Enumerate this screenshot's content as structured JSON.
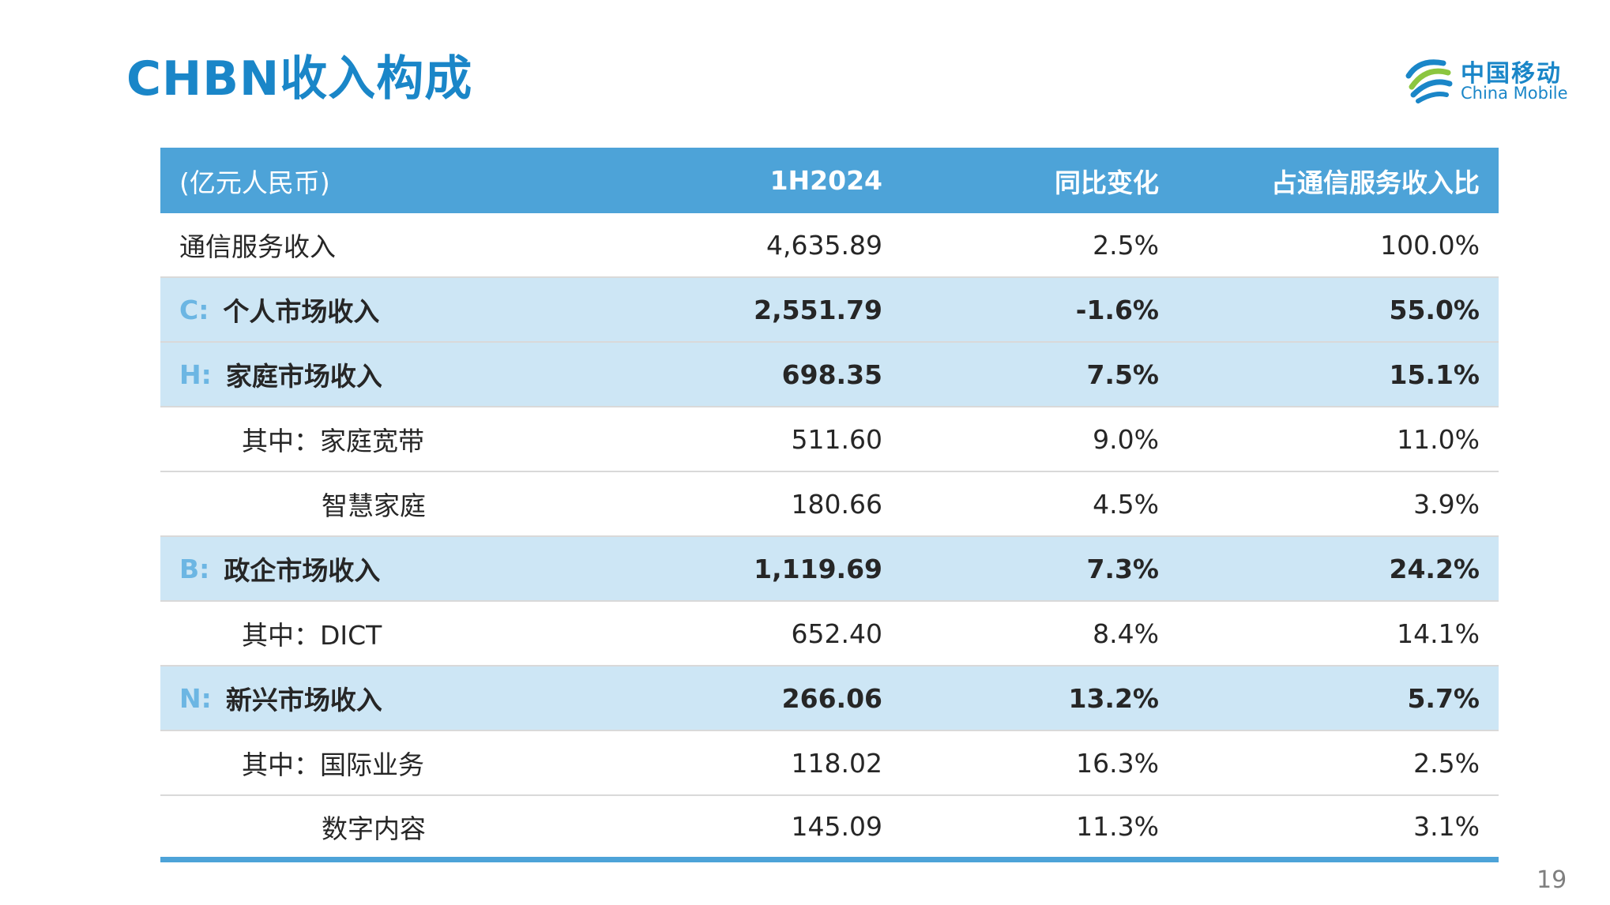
{
  "title": "CHBN收入构成",
  "logo": {
    "cn": "中国移动",
    "en": "China Mobile"
  },
  "table": {
    "headers": [
      "(亿元人民币)",
      "1H2024",
      "同比变化",
      "占通信服务收入比"
    ],
    "rows": [
      {
        "prefix": "",
        "label": "通信服务收入",
        "value": "4,635.89",
        "yoy": "2.5%",
        "share": "100.0%"
      },
      {
        "prefix": "C:",
        "label": "个人市场收入",
        "value": "2,551.79",
        "yoy": "-1.6%",
        "share": "55.0%"
      },
      {
        "prefix": "H:",
        "label": "家庭市场收入",
        "value": "698.35",
        "yoy": "7.5%",
        "share": "15.1%"
      },
      {
        "prefix": "",
        "label": "其中：家庭宽带",
        "value": "511.60",
        "yoy": "9.0%",
        "share": "11.0%"
      },
      {
        "prefix": "",
        "label": "智慧家庭",
        "value": "180.66",
        "yoy": "4.5%",
        "share": "3.9%"
      },
      {
        "prefix": "B:",
        "label": "政企市场收入",
        "value": "1,119.69",
        "yoy": "7.3%",
        "share": "24.2%"
      },
      {
        "prefix": "",
        "label": "其中：DICT",
        "value": "652.40",
        "yoy": "8.4%",
        "share": "14.1%"
      },
      {
        "prefix": "N:",
        "label": "新兴市场收入",
        "value": "266.06",
        "yoy": "13.2%",
        "share": "5.7%"
      },
      {
        "prefix": "",
        "label": "其中：国际业务",
        "value": "118.02",
        "yoy": "16.3%",
        "share": "2.5%"
      },
      {
        "prefix": "",
        "label": "数字内容",
        "value": "145.09",
        "yoy": "11.3%",
        "share": "3.1%"
      }
    ]
  },
  "page_number": "19",
  "colors": {
    "accent": "#1a86c8",
    "header_bg": "#4da3d8",
    "highlight_bg": "#cde6f5",
    "prefix_text": "#6cb6e3"
  }
}
